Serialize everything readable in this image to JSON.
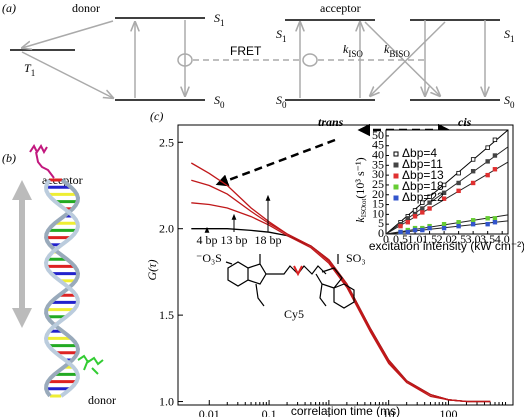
{
  "panel_a": {
    "label": "(a)",
    "donor": "donor",
    "acceptor": "acceptor",
    "fret": "FRET",
    "t1": {
      "main": "T",
      "sub": "1"
    },
    "donor_s1": {
      "main": "S",
      "sub": "1"
    },
    "donor_s0": {
      "main": "S",
      "sub": "0"
    },
    "acc_left_s1": {
      "main": "S",
      "sub": "1"
    },
    "acc_left_s0": {
      "main": "S",
      "sub": "0"
    },
    "acc_right_s1": {
      "main": "S",
      "sub": "1"
    },
    "acc_right_s0": {
      "main": "S",
      "sub": "0"
    },
    "k_iso": {
      "main": "k",
      "sub": "ISO"
    },
    "k_biso": {
      "main": "k",
      "sub": "BISO"
    },
    "trans": "trans",
    "cis": "cis"
  },
  "panel_b": {
    "label": "(b)",
    "acceptor": "acceptor",
    "donor": "donor"
  },
  "panel_c": {
    "label": "(c)",
    "chart": {
      "type": "line",
      "ylabel": "G(τ)",
      "xlabel": "correlation time (ms)",
      "log_x": true,
      "xlim": [
        0.003,
        1200
      ],
      "xticks": [
        0.01,
        0.1,
        1,
        10,
        100
      ],
      "ylim": [
        0.98,
        2.6
      ],
      "yticks": [
        {
          "value": 1.0,
          "label": "1.0"
        },
        {
          "value": 1.5,
          "label": "1.5"
        },
        {
          "value": 2.0,
          "label": "2.0"
        },
        {
          "value": 2.5,
          "label": "2.5"
        }
      ],
      "x": [
        0.005,
        0.01,
        0.02,
        0.05,
        0.1,
        0.2,
        0.5,
        1,
        2,
        5,
        10,
        20,
        50,
        100,
        200,
        500
      ],
      "series": [
        {
          "color": "#000000",
          "values": [
            2.0,
            2.0,
            2.0,
            1.99,
            1.98,
            1.96,
            1.9,
            1.82,
            1.68,
            1.42,
            1.24,
            1.12,
            1.04,
            1.01,
            1.0,
            1.0
          ]
        },
        {
          "color": "#c0181a",
          "values": [
            2.38,
            2.32,
            2.25,
            2.12,
            2.04,
            1.97,
            1.9,
            1.82,
            1.68,
            1.42,
            1.24,
            1.12,
            1.04,
            1.01,
            1.0,
            1.0
          ]
        },
        {
          "color": "#c0181a",
          "values": [
            2.28,
            2.25,
            2.2,
            2.1,
            2.03,
            1.97,
            1.9,
            1.81,
            1.67,
            1.41,
            1.23,
            1.11,
            1.04,
            1.01,
            1.0,
            1.0
          ]
        },
        {
          "color": "#c0181a",
          "values": [
            2.15,
            2.14,
            2.12,
            2.07,
            2.02,
            1.96,
            1.89,
            1.8,
            1.66,
            1.4,
            1.22,
            1.11,
            1.03,
            1.01,
            1.0,
            1.0
          ]
        }
      ],
      "annotations": [
        "4 bp",
        "13 bp",
        "18 bp"
      ],
      "molecule": {
        "name": "Cy5",
        "left_group": "⁻O₃S",
        "right_group": "SO₃"
      }
    },
    "inset": {
      "type": "scatter",
      "ylabel": {
        "main": "k",
        "sub": "ISOtot",
        "unit": "(10³ s⁻¹)"
      },
      "xlabel": "excitation intensity (kW cm⁻²)",
      "xlim": [
        0,
        4.2
      ],
      "xticks": [
        0,
        0.5,
        {
          "value": 1,
          "label": "1.0"
        },
        1.5,
        {
          "value": 2,
          "label": "2.0"
        },
        2.5,
        {
          "value": 3,
          "label": "3.0"
        },
        3.5,
        {
          "value": 4,
          "label": "4.0"
        }
      ],
      "ylim": [
        0,
        53
      ],
      "yticks": [
        0,
        5,
        10,
        15,
        20,
        25,
        30,
        35,
        40,
        45,
        50
      ],
      "x": [
        0.5,
        0.75,
        1,
        1.25,
        1.5,
        2,
        2.5,
        3,
        3.5,
        3.75
      ],
      "legend": "upper left",
      "series": [
        {
          "name": "Δbp=4",
          "color": "#000000",
          "values": [
            6,
            9,
            12,
            16,
            19,
            25,
            31,
            38,
            44,
            48
          ]
        },
        {
          "name": "Δbp=11",
          "color": "#444444",
          "values": [
            5,
            8,
            10,
            13,
            16,
            21,
            26,
            32,
            37,
            40
          ]
        },
        {
          "name": "Δbp=13",
          "color": "#e03030",
          "values": [
            4,
            6,
            9,
            11,
            13,
            18,
            22,
            26,
            30,
            33
          ]
        },
        {
          "name": "Δbp=18",
          "color": "#66cc33",
          "values": [
            1,
            2,
            3,
            3,
            4,
            5,
            6,
            7,
            8,
            8
          ]
        },
        {
          "name": "Δbp=22",
          "color": "#3355cc",
          "values": [
            1,
            1,
            2,
            2,
            3,
            3,
            4,
            5,
            5,
            6
          ]
        }
      ]
    }
  }
}
